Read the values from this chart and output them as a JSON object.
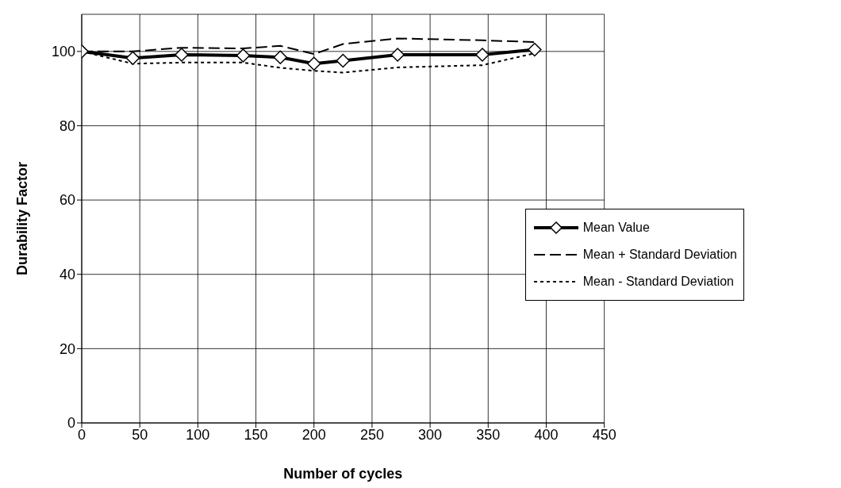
{
  "chart_data": {
    "type": "line",
    "xlabel": "Number of cycles",
    "ylabel": "Durability Factor",
    "x": [
      0,
      44,
      86,
      139,
      171,
      200,
      225,
      272,
      345,
      390
    ],
    "series": [
      {
        "name": "Mean Value",
        "color": "#000000",
        "values": [
          100,
          98.2,
          99.1,
          98.9,
          98.4,
          96.7,
          97.5,
          99.1,
          99.1,
          100.5
        ],
        "marker": "diamond",
        "line_style": "solid"
      },
      {
        "name": "Mean + Standard Deviation",
        "color": "#000000",
        "values": [
          100,
          100,
          101,
          100.8,
          101.5,
          99.3,
          102,
          103.5,
          103,
          102.5
        ],
        "marker": "none",
        "line_style": "dashed"
      },
      {
        "name": "Mean - Standard Deviation",
        "color": "#000000",
        "values": [
          100,
          96.7,
          97,
          97,
          95.6,
          94.8,
          94.3,
          95.7,
          96.3,
          99.5
        ],
        "marker": "none",
        "line_style": "dotted"
      }
    ],
    "xlim": [
      0,
      450
    ],
    "xticks": [
      0,
      50,
      100,
      150,
      200,
      250,
      300,
      350,
      400,
      450
    ],
    "ylim": [
      0,
      110
    ],
    "yticks": [
      0,
      20,
      40,
      60,
      80,
      100
    ],
    "grid": true,
    "legend": "right"
  }
}
